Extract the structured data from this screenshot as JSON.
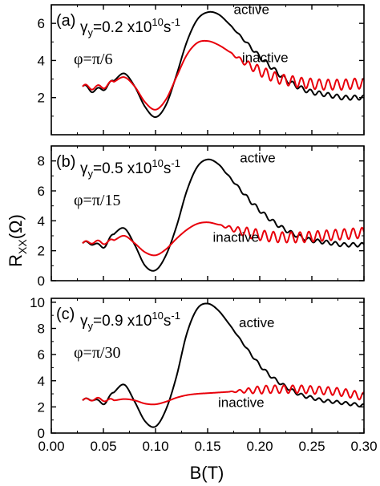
{
  "figure": {
    "ylabel_main": "R",
    "ylabel_sub": "XX",
    "ylabel_unit": "(Ω)",
    "xlabel": "B(T)"
  },
  "chart_data": [
    {
      "type": "line",
      "panel_label": "(a)",
      "gamma_symbol": "γ",
      "gamma_sub": "y",
      "gamma_text": "=0.2 x10",
      "gamma_exp": "10",
      "gamma_unit": "s",
      "gamma_unit_exp": "-1",
      "phi_text": "φ=π/6",
      "xlim": [
        0.0,
        0.3
      ],
      "ylim": [
        0.0,
        7.0
      ],
      "yticks": [
        2,
        4,
        6
      ],
      "xticks": [
        0.0,
        0.05,
        0.1,
        0.15,
        0.2,
        0.25,
        0.3
      ],
      "show_xticklabels": false,
      "series": [
        {
          "name": "active",
          "color": "#000000",
          "x": [
            0.03,
            0.04,
            0.05,
            0.06,
            0.07,
            0.08,
            0.09,
            0.1,
            0.11,
            0.12,
            0.13,
            0.14,
            0.15,
            0.16,
            0.17,
            0.18,
            0.19,
            0.2,
            0.21,
            0.22,
            0.23,
            0.24,
            0.25,
            0.26,
            0.27,
            0.28,
            0.29,
            0.3
          ],
          "y": [
            2.6,
            2.4,
            2.5,
            2.9,
            3.3,
            2.6,
            1.5,
            0.95,
            1.6,
            3.2,
            5.0,
            6.2,
            6.6,
            6.5,
            6.0,
            5.4,
            4.8,
            4.2,
            3.7,
            3.2,
            2.8,
            2.5,
            2.3,
            2.2,
            2.1,
            2.0,
            2.0,
            2.0
          ]
        },
        {
          "name": "inactive",
          "color": "#e8000b",
          "x": [
            0.03,
            0.04,
            0.05,
            0.06,
            0.07,
            0.08,
            0.09,
            0.1,
            0.11,
            0.12,
            0.13,
            0.14,
            0.15,
            0.16,
            0.17,
            0.18,
            0.19,
            0.2,
            0.21,
            0.22,
            0.23,
            0.24,
            0.25,
            0.26,
            0.27,
            0.28,
            0.29,
            0.3
          ],
          "y": [
            2.6,
            2.55,
            2.6,
            2.85,
            3.1,
            2.6,
            1.75,
            1.35,
            1.9,
            3.1,
            4.3,
            4.95,
            5.05,
            4.85,
            4.5,
            4.1,
            3.75,
            3.45,
            3.2,
            3.0,
            2.9,
            2.8,
            2.75,
            2.7,
            2.7,
            2.7,
            2.75,
            2.75
          ]
        }
      ],
      "osc_start": 0.17,
      "osc_amp_black": 0.12,
      "osc_amp_red": 0.28,
      "osc_period": 0.0085,
      "small_osc": true
    },
    {
      "type": "line",
      "panel_label": "(b)",
      "gamma_symbol": "γ",
      "gamma_sub": "y",
      "gamma_text": "=0.5 x10",
      "gamma_exp": "10",
      "gamma_unit": "s",
      "gamma_unit_exp": "-1",
      "phi_text": "φ=π/15",
      "xlim": [
        0.0,
        0.3
      ],
      "ylim": [
        0.0,
        9.0
      ],
      "yticks": [
        0,
        2,
        4,
        6,
        8
      ],
      "xticks": [
        0.0,
        0.05,
        0.1,
        0.15,
        0.2,
        0.25,
        0.3
      ],
      "show_xticklabels": false,
      "series": [
        {
          "name": "active",
          "color": "#000000",
          "x": [
            0.03,
            0.04,
            0.05,
            0.06,
            0.07,
            0.08,
            0.09,
            0.1,
            0.11,
            0.12,
            0.13,
            0.14,
            0.15,
            0.16,
            0.17,
            0.18,
            0.19,
            0.2,
            0.21,
            0.22,
            0.23,
            0.24,
            0.25,
            0.26,
            0.27,
            0.28,
            0.29,
            0.3
          ],
          "y": [
            2.5,
            2.5,
            2.3,
            3.1,
            3.5,
            2.4,
            1.0,
            0.7,
            1.7,
            3.6,
            6.0,
            7.6,
            8.1,
            7.8,
            7.0,
            6.2,
            5.4,
            4.7,
            4.1,
            3.6,
            3.2,
            2.9,
            2.7,
            2.6,
            2.5,
            2.4,
            2.4,
            2.4
          ]
        },
        {
          "name": "inactive",
          "color": "#e8000b",
          "x": [
            0.03,
            0.04,
            0.05,
            0.06,
            0.07,
            0.08,
            0.09,
            0.1,
            0.11,
            0.12,
            0.13,
            0.14,
            0.15,
            0.16,
            0.17,
            0.18,
            0.19,
            0.2,
            0.21,
            0.22,
            0.23,
            0.24,
            0.25,
            0.26,
            0.27,
            0.28,
            0.29,
            0.3
          ],
          "y": [
            2.5,
            2.6,
            2.55,
            2.7,
            3.0,
            2.5,
            1.9,
            1.7,
            2.1,
            2.8,
            3.4,
            3.8,
            3.9,
            3.75,
            3.55,
            3.35,
            3.2,
            3.05,
            2.95,
            2.9,
            2.9,
            2.9,
            2.95,
            3.0,
            3.05,
            3.1,
            3.15,
            3.2
          ]
        }
      ],
      "osc_start": 0.16,
      "osc_amp_black": 0.13,
      "osc_amp_red": 0.35,
      "osc_period": 0.0085,
      "small_osc": true
    },
    {
      "type": "line",
      "panel_label": "(c)",
      "gamma_symbol": "γ",
      "gamma_sub": "y",
      "gamma_text": "=0.9 x10",
      "gamma_exp": "10",
      "gamma_unit": "s",
      "gamma_unit_exp": "-1",
      "phi_text": "φ=π/30",
      "xlim": [
        0.0,
        0.3
      ],
      "ylim": [
        0.0,
        10.3
      ],
      "yticks": [
        0,
        2,
        4,
        6,
        8,
        10
      ],
      "xticks": [
        0.0,
        0.05,
        0.1,
        0.15,
        0.2,
        0.25,
        0.3
      ],
      "xticklabels": [
        "0.00",
        "0.05",
        "0.10",
        "0.15",
        "0.20",
        "0.25",
        "0.30"
      ],
      "show_xticklabels": true,
      "series": [
        {
          "name": "active",
          "color": "#000000",
          "x": [
            0.03,
            0.04,
            0.05,
            0.06,
            0.07,
            0.08,
            0.09,
            0.1,
            0.11,
            0.12,
            0.13,
            0.14,
            0.15,
            0.16,
            0.17,
            0.18,
            0.19,
            0.2,
            0.21,
            0.22,
            0.23,
            0.24,
            0.25,
            0.26,
            0.27,
            0.28,
            0.29,
            0.3
          ],
          "y": [
            2.5,
            2.6,
            2.3,
            3.1,
            3.7,
            2.4,
            0.9,
            0.5,
            1.8,
            4.3,
            7.6,
            9.5,
            9.9,
            9.4,
            8.4,
            7.3,
            6.2,
            5.2,
            4.4,
            3.8,
            3.3,
            2.9,
            2.7,
            2.5,
            2.4,
            2.3,
            2.2,
            2.1
          ]
        },
        {
          "name": "inactive",
          "color": "#e8000b",
          "x": [
            0.03,
            0.04,
            0.05,
            0.06,
            0.07,
            0.08,
            0.09,
            0.1,
            0.11,
            0.12,
            0.13,
            0.14,
            0.15,
            0.16,
            0.17,
            0.18,
            0.19,
            0.2,
            0.21,
            0.22,
            0.23,
            0.24,
            0.25,
            0.26,
            0.27,
            0.28,
            0.29,
            0.3
          ],
          "y": [
            2.5,
            2.6,
            2.55,
            2.5,
            2.6,
            2.5,
            2.25,
            2.2,
            2.4,
            2.7,
            2.9,
            3.0,
            3.05,
            3.1,
            3.15,
            3.2,
            3.25,
            3.3,
            3.35,
            3.35,
            3.35,
            3.35,
            3.3,
            3.25,
            3.2,
            3.1,
            2.95,
            2.8
          ]
        }
      ],
      "osc_start": 0.17,
      "osc_amp_black": 0.12,
      "osc_amp_red": 0.3,
      "osc_period": 0.0085,
      "small_osc": true
    }
  ]
}
